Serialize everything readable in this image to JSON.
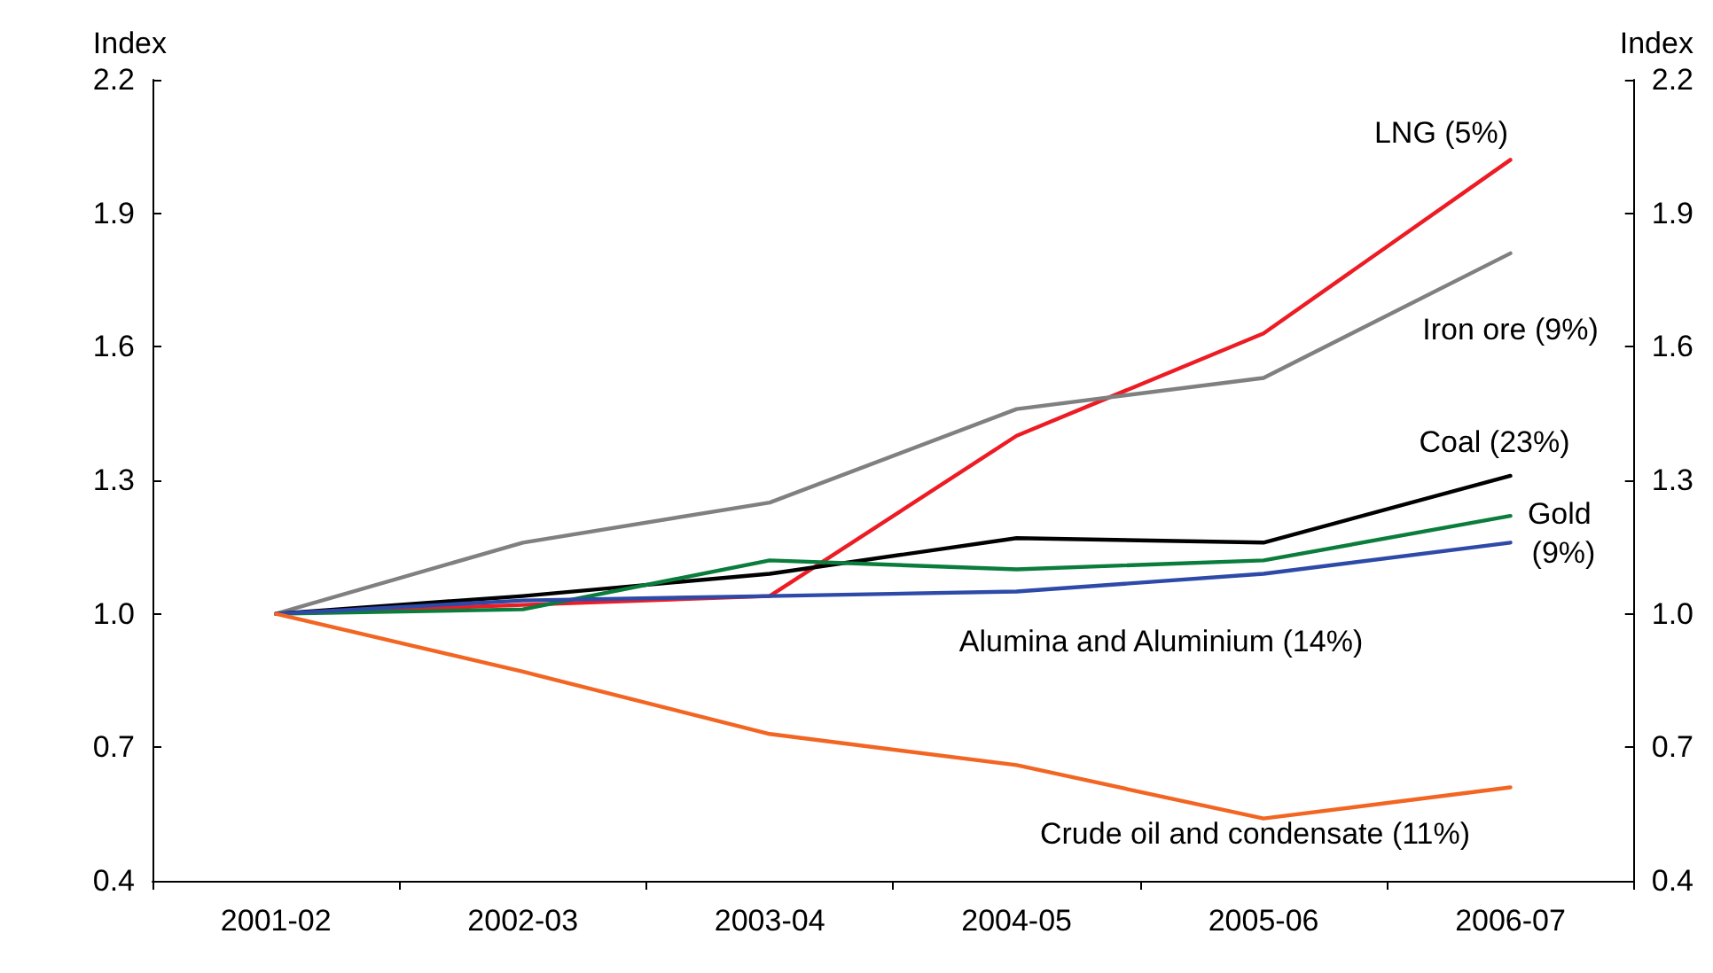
{
  "chart_data": {
    "type": "line",
    "ylabel": "Index",
    "y2label": "Index",
    "categories": [
      "2001-02",
      "2002-03",
      "2003-04",
      "2004-05",
      "2005-06",
      "2006-07"
    ],
    "ylim": [
      0.4,
      2.2
    ],
    "yticks": [
      0.4,
      0.7,
      {
        "value": 1,
        "label": "1.0"
      },
      1.3,
      1.6,
      1.9,
      2.2
    ],
    "y2lim": [
      0.4,
      2.2
    ],
    "y2ticks": [
      0.4,
      0.7,
      {
        "value": 1,
        "label": "1.0"
      },
      1.3,
      1.6,
      1.9,
      2.2
    ],
    "grid": false,
    "legend": false,
    "marker": "none",
    "line_style": "solid",
    "series": [
      {
        "name": "LNG (5%)",
        "color": "#ed1c24",
        "values": [
          1.0,
          1.02,
          1.04,
          1.4,
          1.63,
          2.02
        ]
      },
      {
        "name": "Iron ore (9%)",
        "color": "#808080",
        "values": [
          1.0,
          1.16,
          1.25,
          1.46,
          1.53,
          1.81
        ]
      },
      {
        "name": "Coal (23%)",
        "color": "#000000",
        "values": [
          1.0,
          1.04,
          1.09,
          1.17,
          1.16,
          1.31
        ]
      },
      {
        "name": "Gold (9%)",
        "color": "#0a7d3c",
        "values": [
          1.0,
          1.01,
          1.12,
          1.1,
          1.12,
          1.22
        ]
      },
      {
        "name": "Alumina and Aluminium (14%)",
        "color": "#2e4aa8",
        "values": [
          1.0,
          1.03,
          1.04,
          1.05,
          1.09,
          1.16
        ]
      },
      {
        "name": "Crude oil and condensate (11%)",
        "color": "#f26522",
        "values": [
          1.0,
          0.87,
          0.73,
          0.66,
          0.54,
          0.61
        ]
      }
    ]
  }
}
